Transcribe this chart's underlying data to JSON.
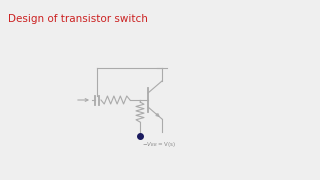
{
  "title": "Design of transistor switch",
  "title_color": "#cc2222",
  "title_fontsize": 7.5,
  "bg_color": "#efefef",
  "circuit_color": "#aaaaaa",
  "dot_color": "#1a1a5e",
  "label_color": "#888888",
  "label_fontsize": 4.0
}
